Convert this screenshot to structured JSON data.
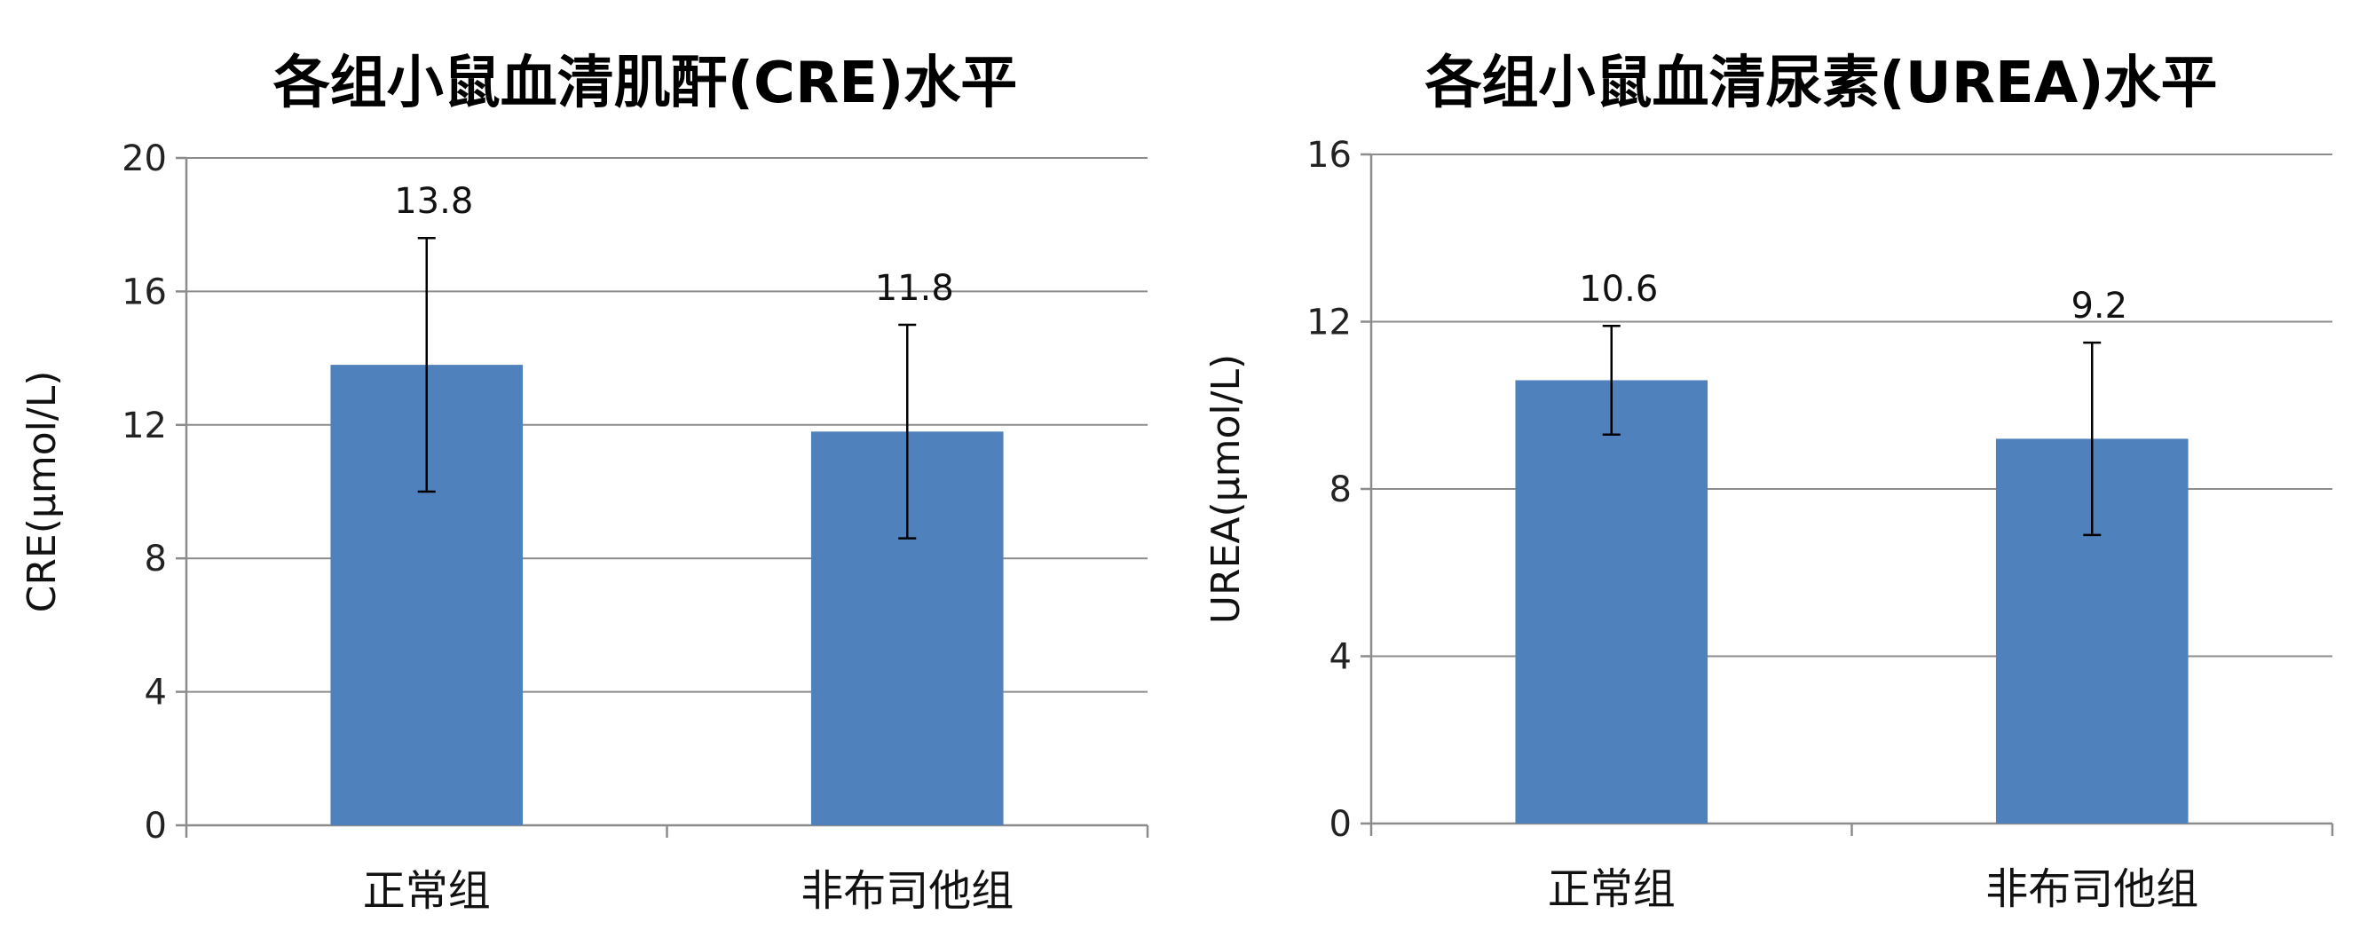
{
  "chart_data": [
    {
      "type": "bar",
      "title": "各组小鼠血清肌酐(CRE)水平",
      "ylabel": "CRE(μmol/L)",
      "xlabel": "",
      "categories": [
        "正常组",
        "非布司他组"
      ],
      "values": [
        13.8,
        11.8
      ],
      "errors": [
        3.8,
        3.2
      ],
      "data_labels": [
        "13.8",
        "11.8"
      ],
      "ylim": [
        0,
        20
      ],
      "yticks": [
        0,
        4,
        8,
        12,
        16,
        20
      ],
      "grid": true,
      "legend": "none",
      "bar_color": "#4f81bd"
    },
    {
      "type": "bar",
      "title": "各组小鼠血清尿素(UREA)水平",
      "ylabel": "UREA(μmol/L)",
      "xlabel": "",
      "categories": [
        "正常组",
        "非布司他组"
      ],
      "values": [
        10.6,
        9.2
      ],
      "errors": [
        1.3,
        2.3
      ],
      "data_labels": [
        "10.6",
        "9.2"
      ],
      "ylim": [
        0,
        16
      ],
      "yticks": [
        0,
        4,
        8,
        12,
        16
      ],
      "grid": true,
      "legend": "none",
      "bar_color": "#4f81bd"
    }
  ]
}
